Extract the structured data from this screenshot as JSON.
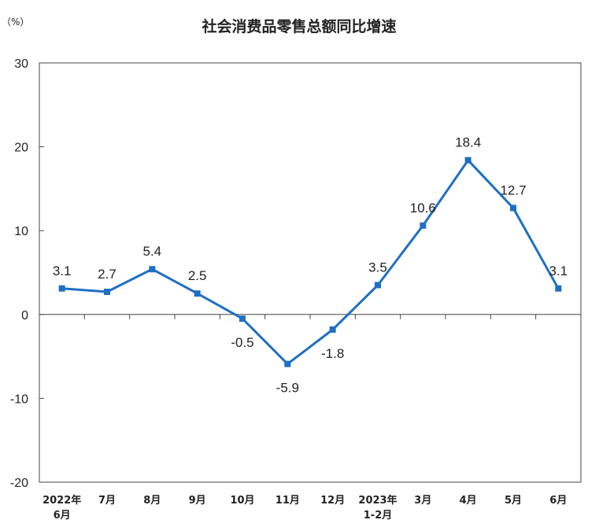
{
  "chart_data": {
    "type": "line",
    "title": "社会消费品零售总额同比增速",
    "unit_label": "（%）",
    "ylim": [
      -20,
      30
    ],
    "yticks": [
      "30",
      "20",
      "10",
      "0",
      "-10",
      "-20"
    ],
    "categories": [
      [
        "2022年",
        "6月"
      ],
      [
        "7月"
      ],
      [
        "8月"
      ],
      [
        "9月"
      ],
      [
        "10月"
      ],
      [
        "11月"
      ],
      [
        "12月"
      ],
      [
        "2023年",
        "1-2月"
      ],
      [
        "3月"
      ],
      [
        "4月"
      ],
      [
        "5月"
      ],
      [
        "6月"
      ]
    ],
    "values": [
      3.1,
      2.7,
      5.4,
      2.5,
      -0.5,
      -5.9,
      -1.8,
      3.5,
      10.6,
      18.4,
      12.7,
      3.1
    ],
    "data_labels": [
      "3.1",
      "2.7",
      "5.4",
      "2.5",
      "-0.5",
      "-5.9",
      "-1.8",
      "3.5",
      "10.6",
      "18.4",
      "12.7",
      "3.1"
    ],
    "grid": false,
    "line_color": "#1f6fc5"
  }
}
